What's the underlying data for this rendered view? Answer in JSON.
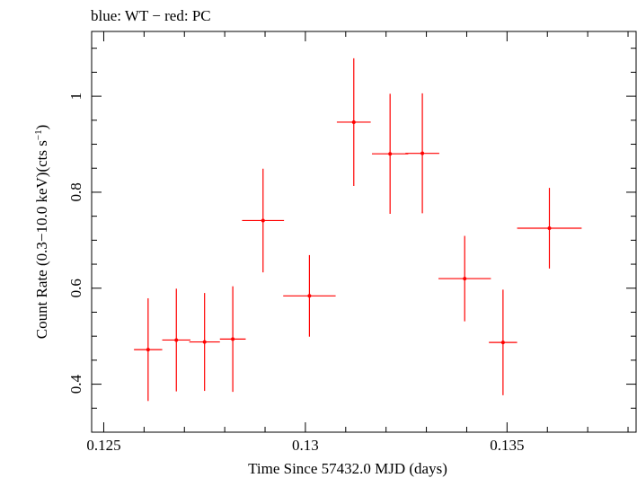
{
  "header": {
    "title": "blue: WT − red: PC"
  },
  "chart_data": {
    "type": "scatter",
    "title": "blue: WT − red: PC",
    "xlabel": "Time Since 57432.0 MJD (days)",
    "ylabel_main": "Count Rate (0.3−10.0 keV)(cts s",
    "ylabel_sup": "−1",
    "ylabel_close": ")",
    "xlim": [
      0.1247,
      0.1382
    ],
    "ylim": [
      0.3,
      1.135
    ],
    "x_ticks": [
      0.125,
      0.13,
      0.135
    ],
    "x_tick_labels": [
      "0.125",
      "0.13",
      "0.135"
    ],
    "y_ticks": [
      0.4,
      0.6,
      0.8,
      1.0
    ],
    "y_tick_labels": [
      "0.4",
      "0.6",
      "0.8",
      "1"
    ],
    "grid": false,
    "series": [
      {
        "name": "PC",
        "color": "#ff0000",
        "points": [
          {
            "x": 0.1261,
            "xerr": 0.00035,
            "y": 0.472,
            "yerr": 0.107
          },
          {
            "x": 0.1268,
            "xerr": 0.00035,
            "y": 0.492,
            "yerr": 0.107
          },
          {
            "x": 0.1275,
            "xerr": 0.00038,
            "y": 0.488,
            "yerr": 0.102
          },
          {
            "x": 0.1282,
            "xerr": 0.00032,
            "y": 0.494,
            "yerr": 0.11
          },
          {
            "x": 0.12895,
            "xerr": 0.00052,
            "y": 0.741,
            "yerr": 0.108
          },
          {
            "x": 0.1301,
            "xerr": 0.00065,
            "y": 0.584,
            "yerr": 0.085
          },
          {
            "x": 0.1312,
            "xerr": 0.00042,
            "y": 0.946,
            "yerr": 0.133
          },
          {
            "x": 0.1321,
            "xerr": 0.00045,
            "y": 0.88,
            "yerr": 0.125
          },
          {
            "x": 0.1329,
            "xerr": 0.00042,
            "y": 0.881,
            "yerr": 0.125
          },
          {
            "x": 0.13395,
            "xerr": 0.00065,
            "y": 0.62,
            "yerr": 0.089
          },
          {
            "x": 0.1349,
            "xerr": 0.00035,
            "y": 0.487,
            "yerr": 0.11
          },
          {
            "x": 0.13605,
            "xerr": 0.0008,
            "y": 0.725,
            "yerr": 0.084
          }
        ]
      }
    ]
  }
}
